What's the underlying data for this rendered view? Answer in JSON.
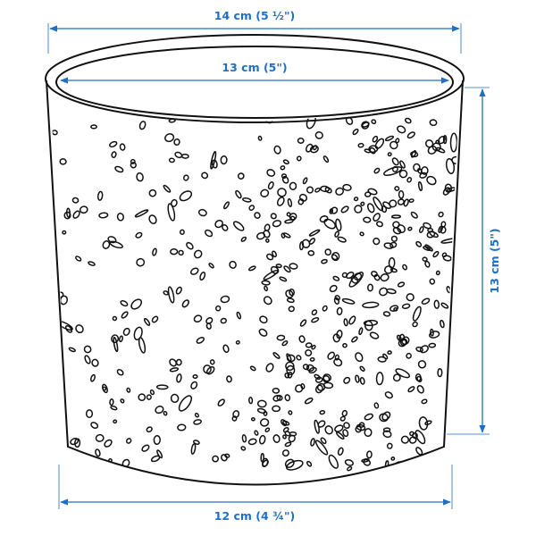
{
  "colors": {
    "dimension": "#1f6fc4",
    "outline": "#111111",
    "background": "#ffffff"
  },
  "dimensions": {
    "top_outer_diameter": "14 cm (5 ½\")",
    "top_inner_diameter": "13 cm (5\")",
    "height": "13 cm (5\")",
    "bottom_diameter": "12 cm (4 ¾\")"
  }
}
